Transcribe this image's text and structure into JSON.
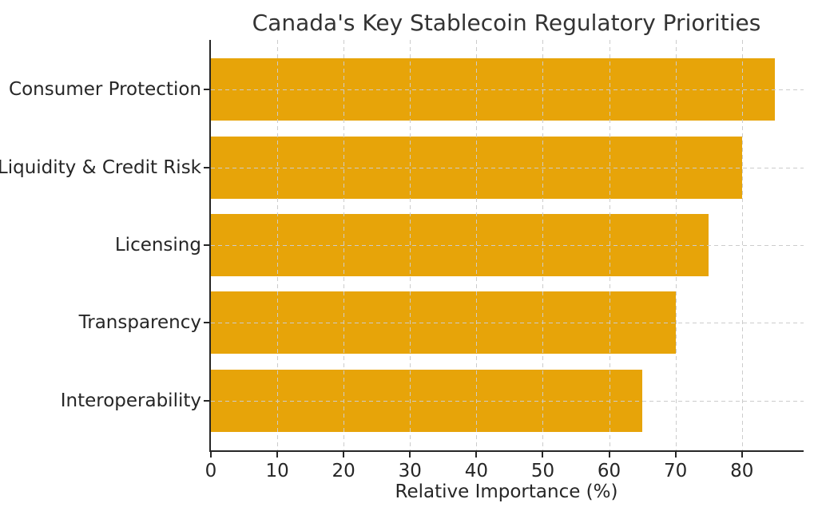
{
  "chart_data": {
    "type": "bar",
    "orientation": "horizontal",
    "title": "Canada's Key Stablecoin Regulatory Priorities",
    "categories": [
      "Consumer Protection",
      "Liquidity & Credit Risk",
      "Licensing",
      "Transparency",
      "Interoperability"
    ],
    "values": [
      85,
      80,
      75,
      70,
      65
    ],
    "xlabel": "Relative Importance (%)",
    "ylabel": "",
    "xticks": [
      0,
      10,
      20,
      30,
      40,
      50,
      60,
      70,
      80
    ],
    "xlim": [
      0,
      89.3
    ],
    "legend": "none",
    "grid": "dashed-both-axes-above-bars",
    "bar_color": "#E7A409",
    "grid_color": "#CCCCCC",
    "axis_color": "#262626",
    "text_color": "#262626",
    "background": "#FFFFFF"
  }
}
